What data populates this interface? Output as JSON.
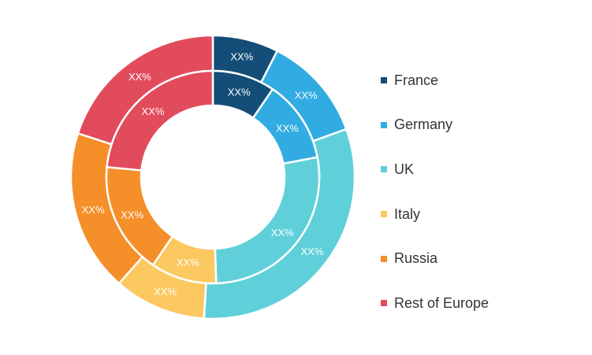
{
  "chart_data": {
    "type": "pie",
    "variant": "double-donut",
    "categories": [
      "France",
      "Germany",
      "UK",
      "Italy",
      "Russia",
      "Rest of Europe"
    ],
    "colors": [
      "#144e78",
      "#31ace2",
      "#5fd0da",
      "#fcc860",
      "#f58f2a",
      "#e24b5c"
    ],
    "series": [
      {
        "ring": "inner",
        "values": [
          9.5,
          12.5,
          27.5,
          10,
          17,
          23.5
        ],
        "labels": [
          "XX%",
          "XX%",
          "XX%",
          "XX%",
          "XX%",
          "XX%"
        ]
      },
      {
        "ring": "outer",
        "values": [
          7.5,
          12,
          31.5,
          10.5,
          18.5,
          20
        ],
        "labels": [
          "XX%",
          "XX%",
          "XX%",
          "XX%",
          "XX%",
          "XX%"
        ]
      }
    ],
    "legend_position": "right"
  }
}
